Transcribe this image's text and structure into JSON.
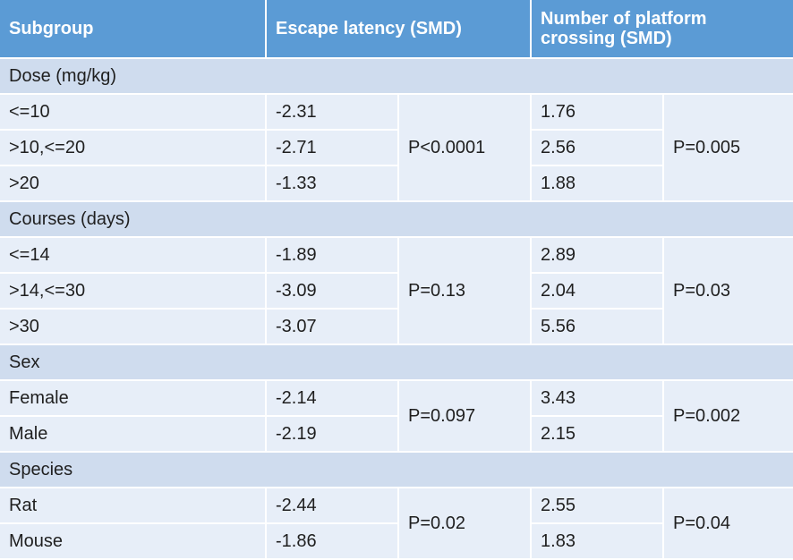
{
  "header": {
    "col1": "Subgroup",
    "col2": "Escape latency (SMD)",
    "col3_line1": "Number of platform",
    "col3_line2": "crossing (SMD)"
  },
  "groups": [
    {
      "title": "Dose (mg/kg)",
      "rows": [
        {
          "subgroup": "<=10",
          "escape": "-2.31",
          "crossing": "1.76"
        },
        {
          "subgroup": ">10,<=20",
          "escape": "-2.71",
          "crossing": "2.56"
        },
        {
          "subgroup": ">20",
          "escape": "-1.33",
          "crossing": "1.88"
        }
      ],
      "p_escape": "P<0.0001",
      "p_crossing": "P=0.005"
    },
    {
      "title": "Courses (days)",
      "rows": [
        {
          "subgroup": "<=14",
          "escape": "-1.89",
          "crossing": "2.89"
        },
        {
          "subgroup": ">14,<=30",
          "escape": "-3.09",
          "crossing": "2.04"
        },
        {
          "subgroup": ">30",
          "escape": "-3.07",
          "crossing": "5.56"
        }
      ],
      "p_escape": "P=0.13",
      "p_crossing": "P=0.03"
    },
    {
      "title": "Sex",
      "rows": [
        {
          "subgroup": "Female",
          "escape": "-2.14",
          "crossing": "3.43"
        },
        {
          "subgroup": "Male",
          "escape": "-2.19",
          "crossing": "2.15"
        }
      ],
      "p_escape": "P=0.097",
      "p_crossing": "P=0.002"
    },
    {
      "title": "Species",
      "rows": [
        {
          "subgroup": "Rat",
          "escape": "-2.44",
          "crossing": "2.55"
        },
        {
          "subgroup": "Mouse",
          "escape": "-1.86",
          "crossing": "1.83"
        }
      ],
      "p_escape": "P=0.02",
      "p_crossing": "P=0.04"
    }
  ]
}
